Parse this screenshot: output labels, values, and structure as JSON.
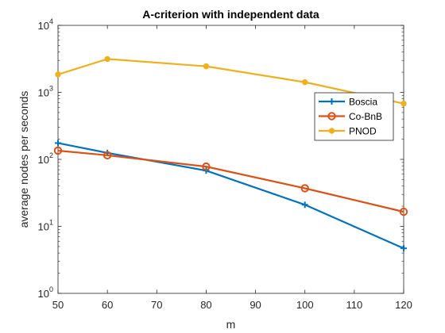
{
  "chart_data": {
    "type": "line",
    "title": "A-criterion with independent data",
    "xlabel": "m",
    "ylabel": "average nodes per seconds",
    "x": [
      50,
      60,
      80,
      100,
      120
    ],
    "xlim": [
      50,
      120
    ],
    "xticks": [
      "50",
      "60",
      "70",
      "80",
      "90",
      "100",
      "110",
      "120"
    ],
    "ylim": [
      1,
      10000
    ],
    "yscale": "log",
    "yticks": [
      {
        "base": "10",
        "exp": "0"
      },
      {
        "base": "10",
        "exp": "1"
      },
      {
        "base": "10",
        "exp": "2"
      },
      {
        "base": "10",
        "exp": "3"
      },
      {
        "base": "10",
        "exp": "4"
      }
    ],
    "grid": false,
    "legend_position": "right",
    "series": [
      {
        "name": "Boscia",
        "color": "#0072BD",
        "marker": "plus",
        "values": [
          175,
          125,
          68,
          21,
          4.7
        ]
      },
      {
        "name": "Co-BnB",
        "color": "#D95319",
        "marker": "circle",
        "values": [
          135,
          115,
          78,
          37,
          16.5
        ]
      },
      {
        "name": "PNOD",
        "color": "#EDB120",
        "marker": "dot",
        "values": [
          1850,
          3150,
          2450,
          1420,
          680
        ]
      }
    ]
  }
}
